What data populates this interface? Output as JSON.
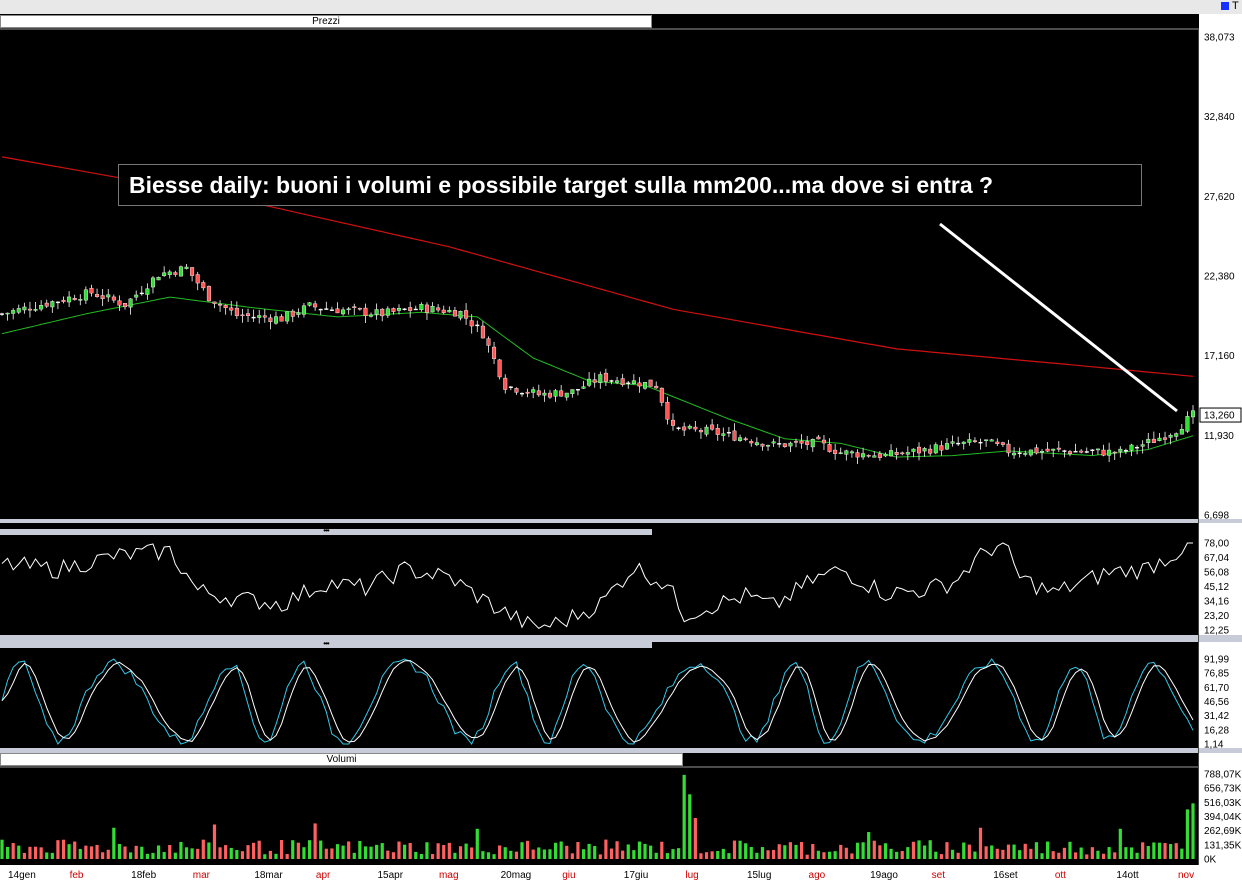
{
  "header": {
    "letter": "T",
    "controls": [
      "▾",
      "▭",
      "✕"
    ],
    "dots": "•••"
  },
  "price_panel": {
    "title": "Prezzi",
    "y_ticks": [
      "38,073",
      "32,840",
      "27,620",
      "22,380",
      "17,160",
      "11,930",
      "6,698"
    ],
    "last_price": "13,260",
    "annotation": "Biesse daily: buoni i volumi e possibile target sulla mm200...ma dove si entra ?"
  },
  "osc1_panel": {
    "y_ticks": [
      "78,00",
      "67,04",
      "56,08",
      "45,12",
      "34,16",
      "23,20",
      "12,25"
    ]
  },
  "osc2_panel": {
    "y_ticks": [
      "91,99",
      "76,85",
      "61,70",
      "46,56",
      "31,42",
      "16,28",
      "1,14"
    ]
  },
  "volume_panel": {
    "title": "Volumi",
    "y_ticks": [
      "788,07K",
      "656,73K",
      "516,03K",
      "394,04K",
      "262,69K",
      "131,35K",
      "0K"
    ]
  },
  "x_axis": {
    "labels": [
      {
        "text": "14gen",
        "color": "#000000"
      },
      {
        "text": "feb",
        "color": "#cc0000"
      },
      {
        "text": "18feb",
        "color": "#000000"
      },
      {
        "text": "mar",
        "color": "#cc0000"
      },
      {
        "text": "18mar",
        "color": "#000000"
      },
      {
        "text": "apr",
        "color": "#cc0000"
      },
      {
        "text": "15apr",
        "color": "#000000"
      },
      {
        "text": "mag",
        "color": "#cc0000"
      },
      {
        "text": "20mag",
        "color": "#000000"
      },
      {
        "text": "giu",
        "color": "#cc0000"
      },
      {
        "text": "17giu",
        "color": "#000000"
      },
      {
        "text": "lug",
        "color": "#cc0000"
      },
      {
        "text": "15lug",
        "color": "#000000"
      },
      {
        "text": "ago",
        "color": "#cc0000"
      },
      {
        "text": "19ago",
        "color": "#000000"
      },
      {
        "text": "set",
        "color": "#cc0000"
      },
      {
        "text": "16set",
        "color": "#000000"
      },
      {
        "text": "ott",
        "color": "#cc0000"
      },
      {
        "text": "14ott",
        "color": "#000000"
      },
      {
        "text": "nov",
        "color": "#cc0000"
      }
    ]
  },
  "colors": {
    "background": "#000000",
    "up_candle": "#33dd33",
    "down_candle": "#ff5555",
    "doji": "#ffffff",
    "ma_long": "#d01010",
    "ma_short": "#22bb22",
    "osc_line": "#ffffff",
    "stoch_signal": "#33c8e8",
    "volume_up": "#33dd33",
    "volume_down": "#ff6060"
  },
  "chart_data": {
    "type": "candlestick",
    "title": "Biesse daily",
    "n_sessions": 214,
    "price_ylim": [
      6.698,
      38.073
    ],
    "close_anchors": [
      [
        0,
        19.9
      ],
      [
        8,
        20.6
      ],
      [
        16,
        21.3
      ],
      [
        22,
        20.5
      ],
      [
        28,
        22.5
      ],
      [
        33,
        22.9
      ],
      [
        37,
        21.0
      ],
      [
        42,
        19.8
      ],
      [
        50,
        19.6
      ],
      [
        55,
        20.4
      ],
      [
        62,
        20.1
      ],
      [
        68,
        19.9
      ],
      [
        75,
        20.3
      ],
      [
        82,
        20.0
      ],
      [
        86,
        18.6
      ],
      [
        90,
        15.2
      ],
      [
        96,
        14.6
      ],
      [
        102,
        14.8
      ],
      [
        107,
        15.7
      ],
      [
        112,
        15.5
      ],
      [
        117,
        15.2
      ],
      [
        120,
        12.3
      ],
      [
        126,
        12.2
      ],
      [
        132,
        11.8
      ],
      [
        138,
        11.3
      ],
      [
        146,
        11.4
      ],
      [
        150,
        10.8
      ],
      [
        158,
        10.6
      ],
      [
        164,
        10.9
      ],
      [
        170,
        11.3
      ],
      [
        176,
        11.5
      ],
      [
        180,
        10.9
      ],
      [
        190,
        10.9
      ],
      [
        200,
        10.8
      ],
      [
        206,
        11.6
      ],
      [
        210,
        12.3
      ],
      [
        213,
        13.26
      ]
    ],
    "ma200_anchors": [
      [
        0,
        30.2
      ],
      [
        40,
        27.6
      ],
      [
        80,
        24.3
      ],
      [
        120,
        20.2
      ],
      [
        160,
        17.6
      ],
      [
        190,
        16.6
      ],
      [
        213,
        15.8
      ]
    ],
    "ma_short_anchors": [
      [
        0,
        18.6
      ],
      [
        15,
        19.9
      ],
      [
        30,
        21.0
      ],
      [
        45,
        20.3
      ],
      [
        60,
        19.7
      ],
      [
        75,
        20.0
      ],
      [
        85,
        19.7
      ],
      [
        95,
        17.0
      ],
      [
        105,
        15.5
      ],
      [
        115,
        15.2
      ],
      [
        130,
        13.0
      ],
      [
        140,
        11.7
      ],
      [
        150,
        11.4
      ],
      [
        160,
        10.5
      ],
      [
        170,
        10.6
      ],
      [
        180,
        10.9
      ],
      [
        195,
        10.6
      ],
      [
        205,
        11.0
      ],
      [
        213,
        11.9
      ]
    ],
    "osc1_ylim": [
      12.25,
      78.0
    ],
    "osc1_anchors": [
      [
        0,
        62
      ],
      [
        10,
        58
      ],
      [
        20,
        68
      ],
      [
        30,
        72
      ],
      [
        35,
        42
      ],
      [
        42,
        36
      ],
      [
        50,
        32
      ],
      [
        58,
        48
      ],
      [
        65,
        44
      ],
      [
        72,
        58
      ],
      [
        80,
        52
      ],
      [
        88,
        30
      ],
      [
        95,
        14
      ],
      [
        100,
        18
      ],
      [
        107,
        32
      ],
      [
        113,
        60
      ],
      [
        119,
        46
      ],
      [
        122,
        24
      ],
      [
        128,
        32
      ],
      [
        133,
        38
      ],
      [
        138,
        30
      ],
      [
        145,
        50
      ],
      [
        150,
        58
      ],
      [
        158,
        40
      ],
      [
        164,
        42
      ],
      [
        170,
        48
      ],
      [
        176,
        72
      ],
      [
        179,
        78
      ],
      [
        182,
        52
      ],
      [
        188,
        40
      ],
      [
        193,
        48
      ],
      [
        198,
        56
      ],
      [
        204,
        58
      ],
      [
        208,
        66
      ],
      [
        213,
        78
      ]
    ],
    "osc2_ylim": [
      1.14,
      91.99
    ],
    "osc2_period_sessions": 17,
    "volume_ylim": [
      0,
      788.07
    ],
    "volume_peaks": [
      [
        20,
        290
      ],
      [
        38,
        320
      ],
      [
        56,
        330
      ],
      [
        85,
        280
      ],
      [
        122,
        780
      ],
      [
        123,
        600
      ],
      [
        124,
        380
      ],
      [
        155,
        250
      ],
      [
        175,
        290
      ],
      [
        200,
        280
      ],
      [
        212,
        460
      ]
    ],
    "volume_last": 516.03
  }
}
